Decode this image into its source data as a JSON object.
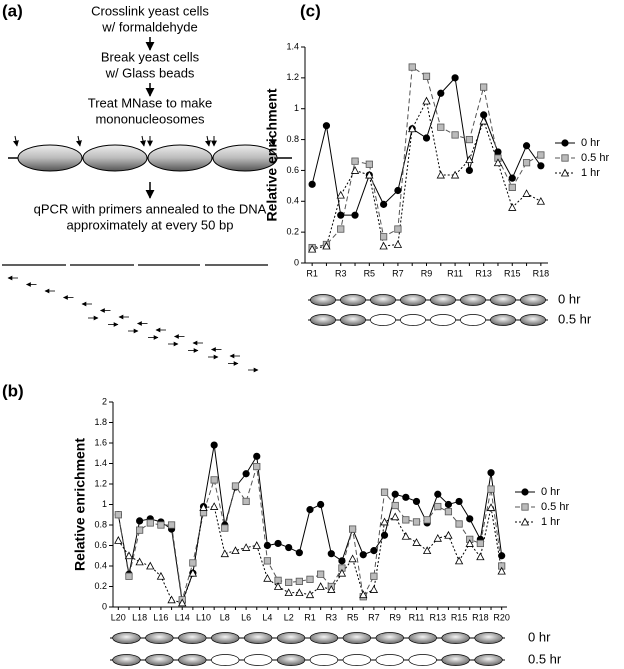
{
  "panel_a": {
    "label": "(a)",
    "steps": [
      [
        "Crosslink yeast cells",
        "w/ formaldehyde"
      ],
      [
        "Break yeast cells",
        "w/ Glass beads"
      ],
      [
        "Treat MNase to make",
        "mononucleosomes"
      ],
      [
        "qPCR with primers annealed to the DNA",
        "approximately at every 50 bp"
      ]
    ]
  },
  "chart_data": [
    {
      "type": "line",
      "label": "(b)",
      "y_label": "Relative enrichment",
      "categories": [
        "L20",
        null,
        "L18",
        null,
        "L16",
        null,
        "L14",
        null,
        "L10",
        null,
        "L8",
        null,
        "L6",
        null,
        "L4",
        null,
        "L2",
        null,
        "R1",
        null,
        "R3",
        null,
        "R5",
        null,
        "R7",
        null,
        "R9",
        null,
        "R11",
        null,
        "R13",
        null,
        "R15",
        null,
        "R18",
        null,
        "R20"
      ],
      "series": [
        {
          "name": "0 hr",
          "color": "#000000",
          "marker": "circle",
          "marker_fill": "#000000",
          "dash": "none",
          "values": [
            0.9,
            0.32,
            0.84,
            0.86,
            0.83,
            0.76,
            0.05,
            0.33,
            0.98,
            1.58,
            0.8,
            1.17,
            1.3,
            1.47,
            0.6,
            0.62,
            0.58,
            0.53,
            0.95,
            1.0,
            0.52,
            0.45,
            0.76,
            0.51,
            0.55,
            0.7,
            1.1,
            1.07,
            1.03,
            0.82,
            1.1,
            1.0,
            1.03,
            0.86,
            0.66,
            1.31,
            0.5
          ]
        },
        {
          "name": "0.5 hr",
          "color": "#555555",
          "marker": "square",
          "marker_fill": "#bbbbbb",
          "dash": "5,3",
          "values": [
            0.9,
            0.3,
            0.75,
            0.82,
            0.8,
            0.8,
            0.07,
            0.43,
            0.92,
            1.24,
            0.77,
            1.18,
            1.03,
            1.37,
            0.45,
            0.26,
            0.24,
            0.25,
            0.27,
            0.32,
            0.2,
            0.38,
            0.76,
            0.1,
            0.3,
            1.12,
            0.99,
            0.85,
            0.83,
            0.85,
            0.98,
            0.93,
            0.81,
            0.66,
            0.62,
            1.15,
            0.4
          ]
        },
        {
          "name": "1 hr",
          "color": "#000000",
          "marker": "triangle",
          "marker_fill": "#ffffff",
          "dash": "2,2",
          "values": [
            0.65,
            0.5,
            0.44,
            0.4,
            0.3,
            0.07,
            0.04,
            0.33,
            0.97,
            0.98,
            0.52,
            0.55,
            0.58,
            0.6,
            0.28,
            0.2,
            0.14,
            0.14,
            0.12,
            0.2,
            0.17,
            0.33,
            0.47,
            0.12,
            0.17,
            0.83,
            0.88,
            0.69,
            0.63,
            0.55,
            0.67,
            0.7,
            0.45,
            0.62,
            0.49,
            0.97,
            0.35
          ]
        }
      ],
      "ylim": [
        0,
        2
      ],
      "yticks": [
        0,
        0.2,
        0.4,
        0.6,
        0.8,
        1,
        1.2,
        1.4,
        1.6,
        1.8,
        2
      ],
      "track_labels": [
        "0 hr",
        "0.5 hr"
      ]
    },
    {
      "type": "line",
      "label": "(c)",
      "y_label": "Relative enrichment",
      "categories": [
        "R1",
        null,
        "R3",
        null,
        "R5",
        null,
        "R7",
        null,
        "R9",
        null,
        "R11",
        null,
        "R13",
        null,
        "R15",
        null,
        "R18"
      ],
      "series": [
        {
          "name": "0 hr",
          "color": "#000000",
          "marker": "circle",
          "marker_fill": "#000000",
          "dash": "none",
          "values": [
            0.51,
            0.89,
            0.31,
            0.31,
            0.57,
            0.38,
            0.47,
            0.87,
            0.81,
            1.1,
            1.2,
            0.6,
            0.96,
            0.72,
            0.55,
            0.76,
            0.63
          ]
        },
        {
          "name": "0.5 hr",
          "color": "#555555",
          "marker": "square",
          "marker_fill": "#bbbbbb",
          "dash": "5,3",
          "values": [
            0.1,
            0.12,
            0.22,
            0.66,
            0.64,
            0.17,
            0.22,
            1.27,
            1.21,
            0.88,
            0.83,
            0.8,
            1.14,
            0.68,
            0.49,
            0.65,
            0.7
          ]
        },
        {
          "name": "1 hr",
          "color": "#000000",
          "marker": "triangle",
          "marker_fill": "#ffffff",
          "dash": "2,2",
          "values": [
            0.09,
            0.11,
            0.44,
            0.6,
            0.57,
            0.11,
            0.12,
            0.87,
            1.05,
            0.57,
            0.57,
            0.67,
            0.92,
            0.65,
            0.36,
            0.45,
            0.4
          ]
        }
      ],
      "ylim": [
        0,
        1.4
      ],
      "yticks": [
        0,
        0.2,
        0.4,
        0.6,
        0.8,
        1,
        1.2,
        1.4
      ],
      "track_labels": [
        "0 hr",
        "0.5 hr"
      ]
    }
  ]
}
